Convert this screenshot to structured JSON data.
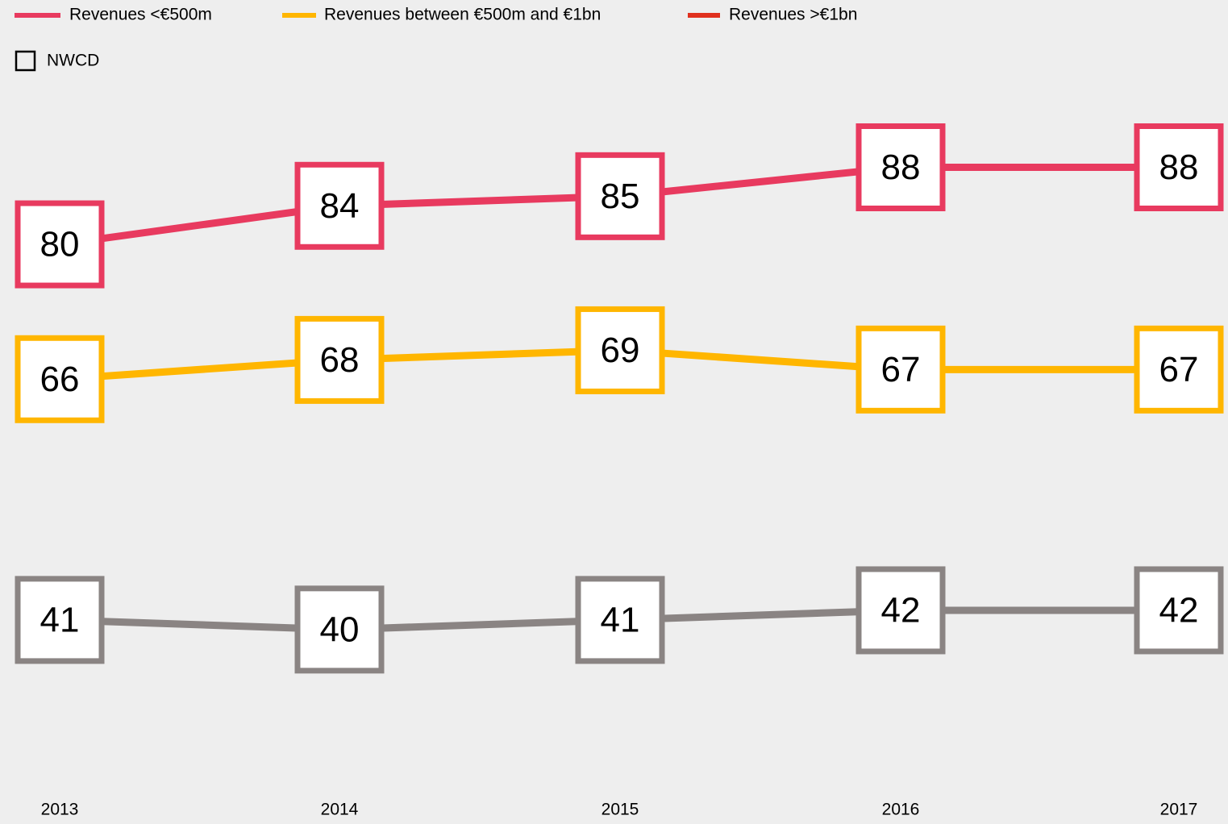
{
  "chart_data": {
    "type": "line",
    "categories": [
      "2013",
      "2014",
      "2015",
      "2016",
      "2017"
    ],
    "series": [
      {
        "name": "Revenues <€500m",
        "color": "#e83a5f",
        "legend_color": "#e83a5f",
        "values": [
          80,
          84,
          85,
          88,
          88
        ]
      },
      {
        "name": "Revenues between €500m and €1bn",
        "color": "#ffb600",
        "legend_color": "#ffb600",
        "values": [
          66,
          68,
          69,
          67,
          67
        ]
      },
      {
        "name": "Revenues >€1bn",
        "color": "#8a8483",
        "legend_color": "#e0301e",
        "values": [
          41,
          40,
          41,
          42,
          42
        ]
      }
    ],
    "marker_legend": "NWCD",
    "ylim": [
      25,
      97
    ]
  }
}
